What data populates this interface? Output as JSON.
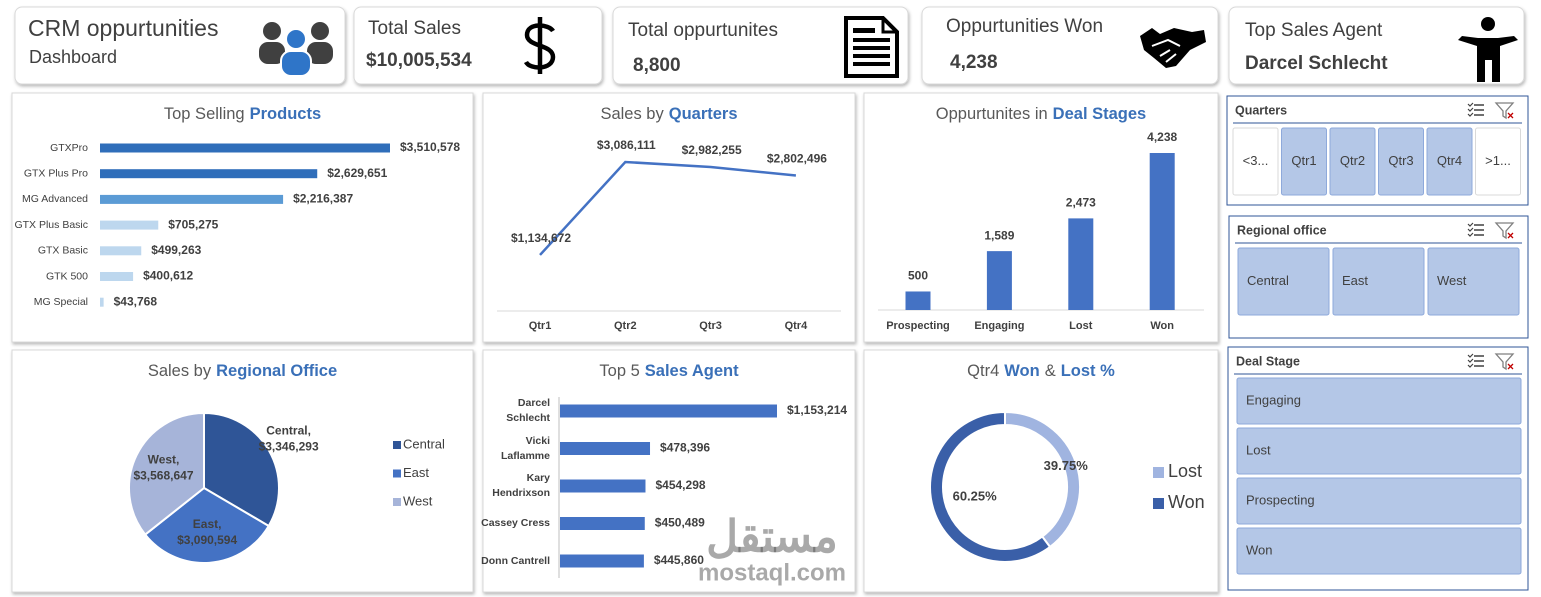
{
  "header": {
    "title": "CRM oppurtunities",
    "subtitle": "Dashboard"
  },
  "kpis": [
    {
      "label": "Total Sales",
      "value": "$10,005,534"
    },
    {
      "label": "Total oppurtunites",
      "value": "8,800"
    },
    {
      "label": "Oppurtunities Won",
      "value": "4,238"
    },
    {
      "label": "Top Sales Agent",
      "value": "Darcel Schlecht"
    }
  ],
  "chart_data": [
    {
      "type": "bar",
      "orientation": "horizontal",
      "title": [
        "Top Selling",
        "Products"
      ],
      "title_emphasis": [
        false,
        true
      ],
      "categories": [
        "GTXPro",
        "GTX Plus Pro",
        "MG Advanced",
        "GTX Plus Basic",
        "GTX Basic",
        "GTK 500",
        "MG Special"
      ],
      "values": [
        3510578,
        2629651,
        2216387,
        705275,
        499263,
        400612,
        43768
      ],
      "value_labels": [
        "$3,510,578",
        "$2,629,651",
        "$2,216,387",
        "$705,275",
        "$499,263",
        "$400,612",
        "$43,768"
      ],
      "colors": [
        "#2f6eba",
        "#2f6eba",
        "#5b9bd5",
        "#bdd7ee",
        "#bdd7ee",
        "#bdd7ee",
        "#bdd7ee"
      ]
    },
    {
      "type": "line",
      "title": [
        "Sales by",
        "Quarters"
      ],
      "title_emphasis": [
        false,
        true
      ],
      "categories": [
        "Qtr1",
        "Qtr2",
        "Qtr3",
        "Qtr4"
      ],
      "values": [
        1134672,
        3086111,
        2982255,
        2802496
      ],
      "value_labels": [
        "$1,134,672",
        "$3,086,111",
        "$2,982,255",
        "$2,802,496"
      ],
      "label_colors": [
        "#c55a11",
        "#70ad47",
        "#404040",
        "#404040"
      ],
      "color": "#4472c4"
    },
    {
      "type": "bar",
      "orientation": "vertical",
      "title": [
        "Oppurtunites in",
        "Deal Stages"
      ],
      "title_emphasis": [
        false,
        true
      ],
      "categories": [
        "Prospecting",
        "Engaging",
        "Lost",
        "Won"
      ],
      "values": [
        500,
        1589,
        2473,
        4238
      ],
      "value_labels": [
        "500",
        "1,589",
        "2,473",
        "4,238"
      ],
      "color": "#4472c4"
    },
    {
      "type": "pie",
      "title": [
        "Sales by",
        "Regional Office"
      ],
      "title_emphasis": [
        false,
        true
      ],
      "categories": [
        "Central",
        "East",
        "West"
      ],
      "label_names": [
        "Central,",
        "East,",
        "West,"
      ],
      "values": [
        3346293,
        3090594,
        3568647
      ],
      "value_labels": [
        "$3,346,293",
        "$3,090,594",
        "$3,568,647"
      ],
      "colors": [
        "#2f5597",
        "#4472c4",
        "#a6b4d9"
      ]
    },
    {
      "type": "bar",
      "orientation": "horizontal",
      "title": [
        "Top 5",
        "Sales Agent"
      ],
      "title_emphasis": [
        false,
        true
      ],
      "categories": [
        "Darcel Schlecht",
        "Vicki Laflamme",
        "Kary Hendrixson",
        "Cassey Cress",
        "Donn Cantrell"
      ],
      "values": [
        1153214,
        478396,
        454298,
        450489,
        445860
      ],
      "value_labels": [
        "$1,153,214",
        "$478,396",
        "$454,298",
        "$450,489",
        "$445,860"
      ],
      "color": "#4472c4"
    },
    {
      "type": "donut",
      "title": [
        "Qtr4",
        "Won",
        "&",
        "Lost %"
      ],
      "title_emphasis": [
        false,
        true,
        false,
        true
      ],
      "categories": [
        "Lost",
        "Won"
      ],
      "values": [
        39.75,
        60.25
      ],
      "value_labels": [
        "39.75%",
        "60.25%"
      ],
      "colors": [
        "#a0b4e0",
        "#3a5fa8"
      ]
    }
  ],
  "slicers": [
    {
      "title": "Quarters",
      "items": [
        "<3...",
        "Qtr1",
        "Qtr2",
        "Qtr3",
        "Qtr4",
        ">1..."
      ],
      "selected": [
        false,
        true,
        true,
        true,
        true,
        false
      ]
    },
    {
      "title": "Regional office",
      "items": [
        "Central",
        "East",
        "West"
      ],
      "selected": [
        true,
        true,
        true
      ]
    },
    {
      "title": "Deal Stage",
      "items": [
        "Engaging",
        "Lost",
        "Prospecting",
        "Won"
      ],
      "selected": [
        true,
        true,
        true,
        true
      ]
    }
  ],
  "watermark": [
    "مستقل",
    "mostaql.com"
  ]
}
